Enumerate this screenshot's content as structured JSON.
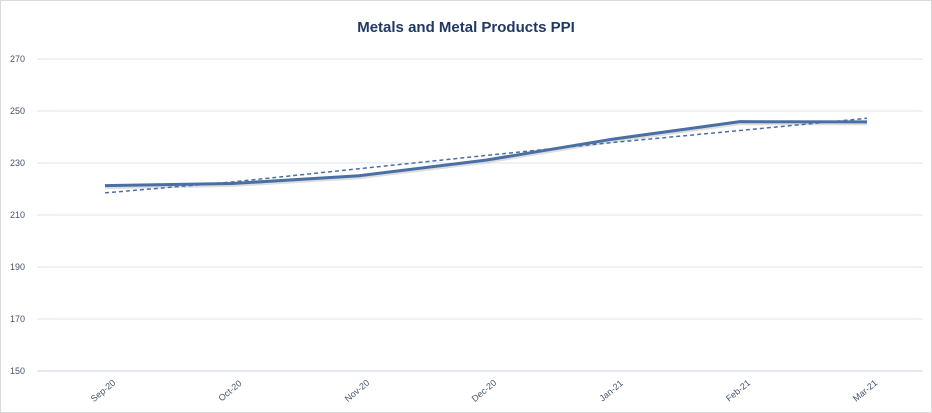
{
  "chart_data": {
    "type": "line",
    "title": "Metals and Metal Products PPI",
    "xlabel": "",
    "ylabel": "",
    "categories": [
      "Sep-20",
      "Oct-20",
      "Nov-20",
      "Dec-20",
      "Jan-21",
      "Feb-21",
      "Mar-21"
    ],
    "series": [
      {
        "values": [
          221.3,
          222.1,
          225.1,
          231.1,
          239.2,
          245.9,
          245.8
        ],
        "color": "#4a6fa5",
        "style": "solid"
      },
      {
        "values": [
          218.5,
          222.7,
          227.8,
          232.9,
          237.9,
          242.5,
          247.2
        ],
        "color": "#4a6fa5",
        "style": "dashed"
      }
    ],
    "ylim": [
      150,
      270
    ],
    "yticks": [
      150,
      170,
      190,
      210,
      230,
      250,
      270
    ],
    "grid": true,
    "legend": "none"
  },
  "colors": {
    "title": "#1f3864",
    "series": "#4a6fa5",
    "gridline": "#dce6f1",
    "tick_text": "#44546a"
  }
}
